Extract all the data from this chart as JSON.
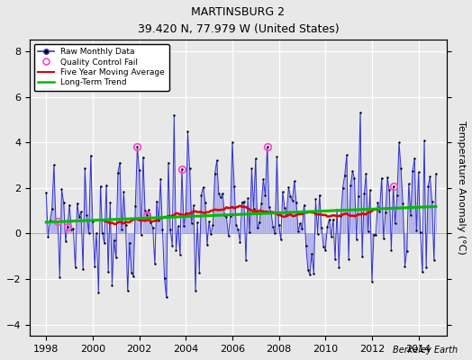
{
  "title": "MARTINSBURG 2",
  "subtitle": "39.420 N, 77.979 W (United States)",
  "ylabel": "Temperature Anomaly (°C)",
  "xlabel_years": [
    1998,
    2000,
    2002,
    2004,
    2006,
    2008,
    2010,
    2012,
    2014
  ],
  "xlim": [
    1997.3,
    2015.2
  ],
  "ylim": [
    -4.5,
    8.5
  ],
  "yticks": [
    -4,
    -2,
    0,
    2,
    4,
    6,
    8
  ],
  "background_color": "#e8e8e8",
  "plot_bg_color": "#e8e8e8",
  "watermark": "Berkeley Earth",
  "raw_color": "#3333cc",
  "stem_color": "#aaaaee",
  "qc_color": "#ff44cc",
  "moving_avg_color": "#dd0000",
  "trend_color": "#00bb00",
  "dot_color": "#000000",
  "grid_color": "#ffffff",
  "seed": 7
}
